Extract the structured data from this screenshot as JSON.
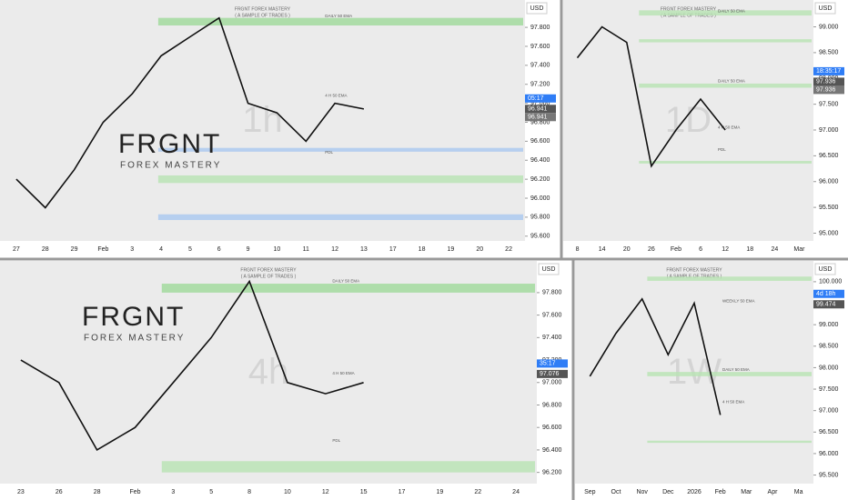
{
  "chart_data": [
    {
      "type": "line",
      "currency": "USD",
      "watermark": "1h",
      "brand": "FRGNT",
      "tagline": "FOREX MASTERY",
      "header": "FRGNT FOREX MASTERY",
      "subheader": "( A SAMPLE OF TRADES )",
      "categories": [
        "27",
        "28",
        "29",
        "Feb",
        "3",
        "4",
        "5",
        "6",
        "9",
        "10",
        "11",
        "12",
        "13",
        "17",
        "18",
        "19",
        "20",
        "22"
      ],
      "values": [
        96.2,
        95.9,
        96.3,
        96.8,
        97.1,
        97.5,
        97.7,
        97.9,
        97.0,
        96.9,
        96.6,
        97.0,
        96.94,
        null,
        null,
        null,
        null,
        null
      ],
      "color": "#111111",
      "ylim": [
        95.55,
        98.05
      ],
      "yticks": [
        {
          "value": 95.6,
          "label": "95.600"
        },
        {
          "value": 95.8,
          "label": "95.800"
        },
        {
          "value": 96.0,
          "label": "96.000"
        },
        {
          "value": 96.2,
          "label": "96.200"
        },
        {
          "value": 96.4,
          "label": "96.400"
        },
        {
          "value": 96.6,
          "label": "96.600"
        },
        {
          "value": 96.8,
          "label": "96.800"
        },
        {
          "value": 97.0,
          "label": "97.000"
        },
        {
          "value": 97.2,
          "label": "97.200"
        },
        {
          "value": 97.4,
          "label": "97.400"
        },
        {
          "value": 97.6,
          "label": "97.600"
        },
        {
          "value": 97.8,
          "label": "97.800"
        }
      ],
      "zones": [
        {
          "from": 97.82,
          "to": 97.9,
          "color": "#9fd99a"
        },
        {
          "from": 96.16,
          "to": 96.24,
          "color": "#b8e3b3"
        },
        {
          "from": 95.77,
          "to": 95.83,
          "color": "#a9c8f0"
        },
        {
          "from": 96.49,
          "to": 96.53,
          "color": "#a9c8f0"
        }
      ],
      "annotations": [
        {
          "text": "DAILY 50 EMA",
          "y": 97.92
        },
        {
          "text": "4 H 50 EMA",
          "y": 97.08
        },
        {
          "text": "PDL",
          "y": 96.48
        }
      ],
      "price_tags": [
        {
          "value": 96.941,
          "color": "#555555"
        },
        {
          "value": 96.941,
          "color": "#777777"
        }
      ],
      "timer": "05:17"
    },
    {
      "type": "line",
      "currency": "USD",
      "watermark": "1D",
      "header": "FRGNT FOREX MASTERY",
      "subheader": "( A SAMPLE OF TRADES )",
      "categories": [
        "8",
        "14",
        "20",
        "26",
        "Feb",
        "6",
        "12",
        "18",
        "24",
        "Mar"
      ],
      "values": [
        98.4,
        99.0,
        98.7,
        96.3,
        97.0,
        97.6,
        97.0,
        null,
        null,
        null
      ],
      "color": "#111111",
      "ylim": [
        94.85,
        99.45
      ],
      "yticks": [
        {
          "value": 95.0,
          "label": "95.000"
        },
        {
          "value": 95.5,
          "label": "95.500"
        },
        {
          "value": 96.0,
          "label": "96.000"
        },
        {
          "value": 96.5,
          "label": "96.500"
        },
        {
          "value": 97.0,
          "label": "97.000"
        },
        {
          "value": 97.5,
          "label": "97.500"
        },
        {
          "value": 98.0,
          "label": "98.000"
        },
        {
          "value": 98.5,
          "label": "98.500"
        },
        {
          "value": 99.0,
          "label": "99.000"
        }
      ],
      "zones": [
        {
          "from": 99.22,
          "to": 99.32,
          "color": "#b8e3b3"
        },
        {
          "from": 98.7,
          "to": 98.76,
          "color": "#b8e3b3"
        },
        {
          "from": 97.82,
          "to": 97.9,
          "color": "#b8e3b3"
        },
        {
          "from": 96.35,
          "to": 96.4,
          "color": "#b8e3b3"
        }
      ],
      "annotations": [
        {
          "text": "DAILY 50 EMA",
          "y": 99.3
        },
        {
          "text": "DAILY 50 EMA",
          "y": 97.95
        },
        {
          "text": "4 H 50 EMA",
          "y": 97.05
        },
        {
          "text": "PDL",
          "y": 96.62
        }
      ],
      "price_tags": [
        {
          "value": 97.936,
          "color": "#555555"
        },
        {
          "value": 97.936,
          "color": "#777777"
        }
      ],
      "timer": "18:35:17"
    },
    {
      "type": "line",
      "currency": "USD",
      "watermark": "4h",
      "brand": "FRGNT",
      "tagline": "FOREX MASTERY",
      "header": "FRGNT FOREX MASTERY",
      "subheader": "( A SAMPLE OF TRADES )",
      "categories": [
        "23",
        "26",
        "28",
        "Feb",
        "3",
        "5",
        "8",
        "10",
        "12",
        "15",
        "17",
        "19",
        "22",
        "24"
      ],
      "values": [
        97.2,
        97.0,
        96.4,
        96.6,
        97.0,
        97.4,
        97.9,
        97.0,
        96.9,
        97.0,
        null,
        null,
        null,
        null
      ],
      "color": "#111111",
      "ylim": [
        96.1,
        98.05
      ],
      "yticks": [
        {
          "value": 96.2,
          "label": "96.200"
        },
        {
          "value": 96.4,
          "label": "96.400"
        },
        {
          "value": 96.6,
          "label": "96.600"
        },
        {
          "value": 96.8,
          "label": "96.800"
        },
        {
          "value": 97.0,
          "label": "97.000"
        },
        {
          "value": 97.2,
          "label": "97.200"
        },
        {
          "value": 97.4,
          "label": "97.400"
        },
        {
          "value": 97.6,
          "label": "97.600"
        },
        {
          "value": 97.8,
          "label": "97.800"
        }
      ],
      "zones": [
        {
          "from": 97.8,
          "to": 97.88,
          "color": "#9fd99a"
        },
        {
          "from": 96.2,
          "to": 96.3,
          "color": "#b8e3b3"
        }
      ],
      "annotations": [
        {
          "text": "DAILY 50 EMA",
          "y": 97.9
        },
        {
          "text": "4 H 50 EMA",
          "y": 97.08
        },
        {
          "text": "PDL",
          "y": 96.48
        }
      ],
      "price_tags": [
        {
          "value": 97.076,
          "color": "#555555"
        }
      ],
      "timer": "35:17"
    },
    {
      "type": "line",
      "currency": "USD",
      "watermark": "1W",
      "header": "FRGNT FOREX MASTERY",
      "subheader": "( A SAMPLE OF TRADES )",
      "categories": [
        "Sep",
        "Oct",
        "Nov",
        "Dec",
        "2026",
        "Feb",
        "Mar",
        "Apr",
        "Ma"
      ],
      "values": [
        97.8,
        98.8,
        99.6,
        98.3,
        99.5,
        96.9,
        null,
        null,
        null
      ],
      "color": "#111111",
      "ylim": [
        95.3,
        100.4
      ],
      "yticks": [
        {
          "value": 95.5,
          "label": "95.500"
        },
        {
          "value": 96.0,
          "label": "96.000"
        },
        {
          "value": 96.5,
          "label": "96.500"
        },
        {
          "value": 97.0,
          "label": "97.000"
        },
        {
          "value": 97.5,
          "label": "97.500"
        },
        {
          "value": 98.0,
          "label": "98.000"
        },
        {
          "value": 98.5,
          "label": "98.500"
        },
        {
          "value": 99.0,
          "label": "99.000"
        },
        {
          "value": 99.5,
          "label": "99.500"
        },
        {
          "value": 100.0,
          "label": "100.000"
        }
      ],
      "zones": [
        {
          "from": 100.02,
          "to": 100.12,
          "color": "#b8e3b3"
        },
        {
          "from": 97.8,
          "to": 97.9,
          "color": "#b8e3b3"
        },
        {
          "from": 96.25,
          "to": 96.3,
          "color": "#b8e3b3"
        }
      ],
      "annotations": [
        {
          "text": "WEEKLY 50 EMA",
          "y": 99.55
        },
        {
          "text": "DAILY 50 EMA",
          "y": 97.95
        },
        {
          "text": "4 H 50 EMA",
          "y": 97.2
        }
      ],
      "price_tags": [
        {
          "value": 99.474,
          "color": "#555555"
        }
      ],
      "timer": "4d 18h"
    }
  ]
}
